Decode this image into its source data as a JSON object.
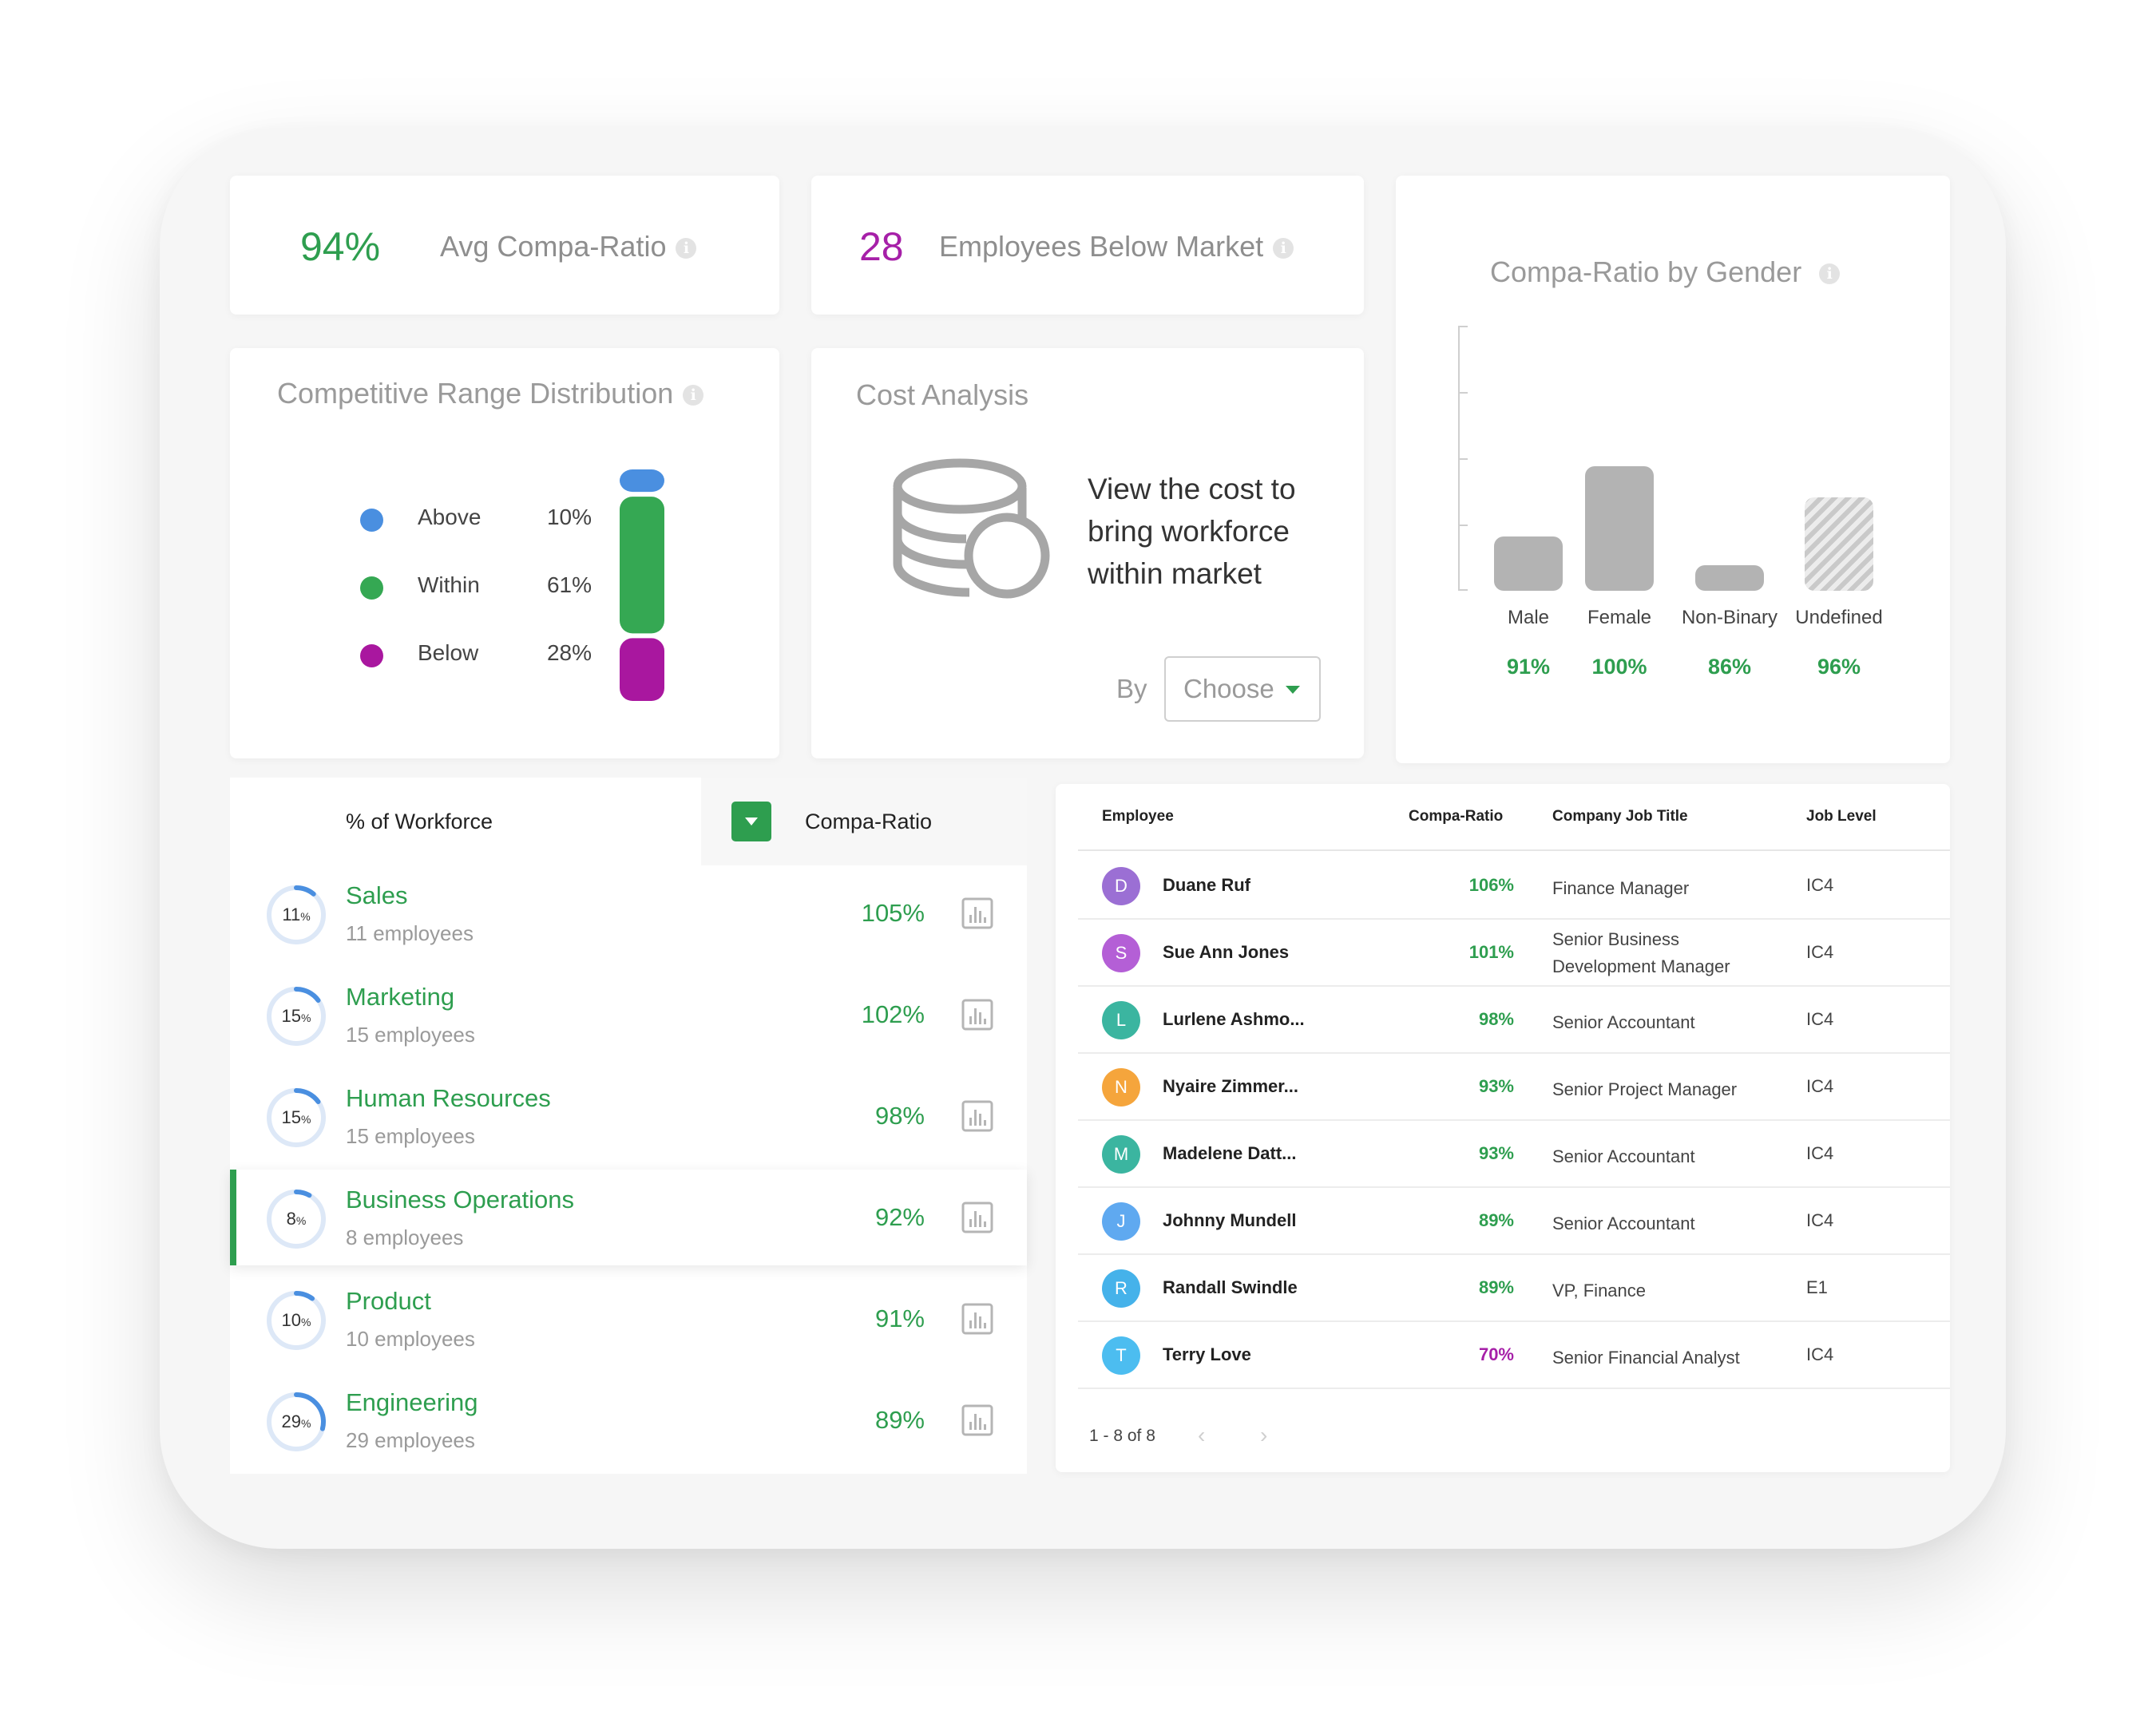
{
  "kpis": {
    "avg_compa": {
      "value": "94%",
      "label": "Avg Compa-Ratio",
      "color": "#2e9e4f"
    },
    "below_market": {
      "value": "28",
      "label": "Employees Below Market",
      "color": "#a620a8"
    }
  },
  "info_icon_glyph": "i",
  "competitive_range": {
    "title": "Competitive Range Distribution",
    "items": [
      {
        "name": "Above",
        "pct": "10%",
        "value": 10,
        "color": "#4a8fe0"
      },
      {
        "name": "Within",
        "pct": "61%",
        "value": 61,
        "color": "#35a853"
      },
      {
        "name": "Below",
        "pct": "28%",
        "value": 28,
        "color": "#a9179f"
      }
    ]
  },
  "cost_analysis": {
    "title": "Cost Analysis",
    "text": "View the cost to bring workforce within market",
    "by_label": "By",
    "select_value": "Choose",
    "icon": "coins-icon"
  },
  "chart_data": {
    "type": "bar",
    "title": "Compa-Ratio by Gender",
    "categories": [
      "Male",
      "Female",
      "Non-Binary",
      "Undefined"
    ],
    "value_labels": [
      "91%",
      "100%",
      "86%",
      "96%"
    ],
    "values": [
      91,
      100,
      86,
      96
    ],
    "bar_color": "#b3b3b3",
    "value_color": "#2e9e4f"
  },
  "departments": {
    "header_left": "% of Workforce",
    "header_right": "Compa-Ratio",
    "rows": [
      {
        "name": "Sales",
        "share": "11",
        "share_value": 11,
        "employees": "11 employees",
        "ratio": "105%"
      },
      {
        "name": "Marketing",
        "share": "15",
        "share_value": 15,
        "employees": "15 employees",
        "ratio": "102%"
      },
      {
        "name": "Human Resources",
        "share": "15",
        "share_value": 15,
        "employees": "15 employees",
        "ratio": "98%"
      },
      {
        "name": "Business Operations",
        "share": "8",
        "share_value": 8,
        "employees": "8 employees",
        "ratio": "92%",
        "selected": true
      },
      {
        "name": "Product",
        "share": "10",
        "share_value": 10,
        "employees": "10 employees",
        "ratio": "91%"
      },
      {
        "name": "Engineering",
        "share": "29",
        "share_value": 29,
        "employees": "29 employees",
        "ratio": "89%"
      }
    ],
    "pct_symbol": "%"
  },
  "employees": {
    "columns": [
      "Employee",
      "Compa-Ratio",
      "Company Job Title",
      "Job Level"
    ],
    "rows": [
      {
        "initial": "D",
        "name": "Duane Ruf",
        "ratio": "106%",
        "title": "Finance Manager",
        "level": "IC4",
        "avatar": "#9b6fd4",
        "ratio_color": "#2e9e4f"
      },
      {
        "initial": "S",
        "name": "Sue Ann Jones",
        "ratio": "101%",
        "title": "Senior Business Development Manager",
        "level": "IC4",
        "avatar": "#b45fd6",
        "ratio_color": "#2e9e4f"
      },
      {
        "initial": "L",
        "name": "Lurlene Ashmo...",
        "ratio": "98%",
        "title": "Senior Accountant",
        "level": "IC4",
        "avatar": "#3bb5a0",
        "ratio_color": "#2e9e4f"
      },
      {
        "initial": "N",
        "name": "Nyaire Zimmer...",
        "ratio": "93%",
        "title": "Senior Project Manager",
        "level": "IC4",
        "avatar": "#f5a53c",
        "ratio_color": "#2e9e4f"
      },
      {
        "initial": "M",
        "name": "Madelene Datt...",
        "ratio": "93%",
        "title": "Senior Accountant",
        "level": "IC4",
        "avatar": "#3bb5a0",
        "ratio_color": "#2e9e4f"
      },
      {
        "initial": "J",
        "name": "Johnny Mundell",
        "ratio": "89%",
        "title": "Senior Accountant",
        "level": "IC4",
        "avatar": "#5fa9f0",
        "ratio_color": "#2e9e4f"
      },
      {
        "initial": "R",
        "name": "Randall Swindle",
        "ratio": "89%",
        "title": "VP, Finance",
        "level": "E1",
        "avatar": "#45b2ea",
        "ratio_color": "#2e9e4f"
      },
      {
        "initial": "T",
        "name": "Terry Love",
        "ratio": "70%",
        "title": "Senior Financial Analyst",
        "level": "IC4",
        "avatar": "#4cbdf0",
        "ratio_color": "#a620a8"
      }
    ],
    "pagination": "1 - 8 of 8",
    "prev": "‹",
    "next": "›"
  }
}
